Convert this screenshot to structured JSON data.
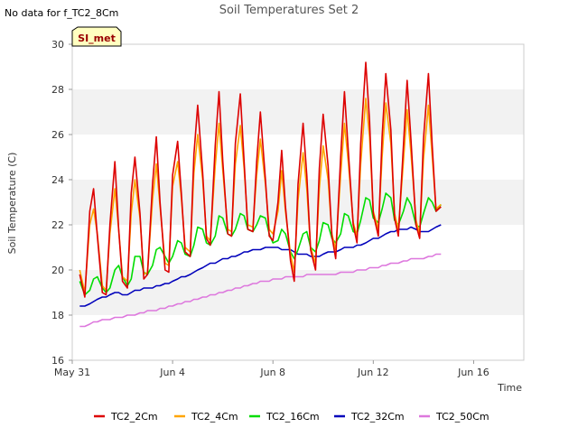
{
  "corner_note": "No data for f_TC2_8Cm",
  "site_badge": "SI_met",
  "chart_data": {
    "type": "line",
    "title": "Soil Temperatures Set 2",
    "xlabel": "Time",
    "ylabel": "Soil Temperature (C)",
    "ylim": [
      16,
      30
    ],
    "yticks": [
      "16",
      "18",
      "20",
      "22",
      "24",
      "26",
      "28",
      "30"
    ],
    "xlim_days": [
      0,
      18
    ],
    "xticks": [
      {
        "day": 0,
        "label": "May 31"
      },
      {
        "day": 4,
        "label": "Jun 4"
      },
      {
        "day": 8,
        "label": "Jun 8"
      },
      {
        "day": 12,
        "label": "Jun 12"
      },
      {
        "day": 16,
        "label": "Jun 16"
      }
    ],
    "grid": "horizontal bands",
    "legend_position": "bottom",
    "x_days": [
      0.3,
      0.5,
      0.7,
      0.85,
      1.0,
      1.2,
      1.35,
      1.5,
      1.7,
      1.85,
      2.0,
      2.2,
      2.35,
      2.5,
      2.7,
      2.85,
      3.0,
      3.2,
      3.35,
      3.5,
      3.7,
      3.85,
      4.0,
      4.2,
      4.35,
      4.5,
      4.7,
      4.85,
      5.0,
      5.2,
      5.35,
      5.5,
      5.7,
      5.85,
      6.0,
      6.2,
      6.35,
      6.5,
      6.7,
      6.85,
      7.0,
      7.2,
      7.35,
      7.5,
      7.7,
      7.85,
      8.0,
      8.2,
      8.35,
      8.5,
      8.7,
      8.85,
      9.0,
      9.2,
      9.35,
      9.5,
      9.7,
      9.85,
      10.0,
      10.2,
      10.35,
      10.5,
      10.7,
      10.85,
      11.0,
      11.2,
      11.35,
      11.5,
      11.7,
      11.85,
      12.0,
      12.2,
      12.35,
      12.5,
      12.7,
      12.85,
      13.0,
      13.2,
      13.35,
      13.5,
      13.7,
      13.85,
      14.0,
      14.2,
      14.35,
      14.5,
      14.7,
      14.85,
      15.0,
      15.2,
      15.35,
      15.5,
      15.7,
      15.85,
      16.0,
      16.2,
      16.35,
      16.5,
      16.7,
      16.85,
      17.0,
      17.2,
      17.35
    ],
    "series": [
      {
        "name": "TC2_2Cm",
        "color": "#dd0000",
        "values": [
          19.8,
          18.8,
          22.6,
          23.6,
          21.5,
          19.0,
          18.9,
          22.0,
          24.8,
          21.8,
          19.5,
          19.2,
          23.4,
          25.0,
          22.5,
          19.6,
          19.8,
          23.8,
          25.9,
          23.0,
          20.0,
          19.9,
          24.2,
          25.7,
          23.4,
          20.8,
          20.6,
          25.1,
          27.3,
          24.3,
          21.4,
          21.1,
          25.5,
          27.9,
          24.8,
          21.6,
          21.5,
          25.6,
          27.8,
          24.8,
          21.8,
          21.7,
          24.8,
          27.0,
          24.0,
          21.5,
          21.3,
          23.0,
          25.3,
          22.8,
          20.4,
          19.5,
          23.8,
          26.5,
          24.2,
          20.9,
          20.0,
          24.5,
          26.9,
          24.6,
          21.5,
          20.5,
          25.0,
          27.9,
          25.3,
          22.0,
          21.2,
          25.6,
          29.2,
          26.6,
          22.5,
          21.5,
          25.9,
          28.7,
          26.2,
          22.3,
          21.5,
          25.5,
          28.4,
          25.8,
          22.0,
          21.4,
          25.8,
          28.7,
          25.5,
          22.6,
          22.8
        ]
      },
      {
        "name": "TC2_4Cm",
        "color": "#ffa500",
        "values": [
          20.0,
          19.0,
          22.0,
          22.7,
          21.6,
          19.3,
          19.1,
          21.6,
          23.6,
          21.8,
          19.7,
          19.5,
          22.5,
          24.0,
          22.3,
          19.8,
          19.9,
          23.1,
          24.7,
          22.8,
          20.3,
          20.2,
          23.7,
          24.8,
          23.2,
          21.0,
          20.8,
          24.3,
          26.0,
          24.0,
          21.5,
          21.3,
          24.6,
          26.5,
          24.4,
          21.8,
          21.7,
          24.7,
          26.4,
          24.5,
          22.0,
          21.9,
          24.2,
          25.8,
          23.8,
          21.8,
          21.6,
          22.6,
          24.4,
          22.6,
          20.7,
          19.9,
          23.1,
          25.2,
          23.6,
          21.0,
          20.3,
          23.6,
          25.5,
          24.0,
          21.6,
          20.9,
          24.2,
          26.5,
          24.8,
          22.1,
          21.5,
          24.7,
          27.6,
          25.9,
          22.6,
          21.8,
          25.0,
          27.4,
          25.6,
          22.5,
          21.8,
          24.8,
          27.1,
          25.2,
          22.2,
          21.6,
          24.9,
          27.3,
          25.0,
          22.7,
          22.9
        ]
      },
      {
        "name": "TC2_16Cm",
        "color": "#00dd00",
        "values": [
          19.5,
          18.9,
          19.1,
          19.6,
          19.7,
          19.2,
          19.0,
          19.2,
          20.0,
          20.2,
          19.7,
          19.3,
          19.6,
          20.6,
          20.6,
          19.9,
          19.8,
          20.2,
          20.9,
          21.0,
          20.6,
          20.3,
          20.6,
          21.3,
          21.2,
          20.7,
          20.6,
          21.1,
          21.9,
          21.8,
          21.2,
          21.1,
          21.5,
          22.4,
          22.3,
          21.6,
          21.5,
          21.8,
          22.5,
          22.4,
          21.8,
          21.7,
          22.0,
          22.4,
          22.3,
          21.6,
          21.2,
          21.3,
          21.8,
          21.6,
          20.8,
          20.5,
          20.9,
          21.6,
          21.7,
          21.0,
          20.8,
          21.3,
          22.1,
          22.0,
          21.4,
          21.2,
          21.6,
          22.5,
          22.4,
          21.7,
          21.6,
          22.2,
          23.2,
          23.1,
          22.3,
          22.1,
          22.7,
          23.4,
          23.2,
          22.2,
          22.0,
          22.6,
          23.2,
          22.9,
          22.0,
          21.9,
          22.5,
          23.2,
          23.0,
          22.6,
          22.9
        ]
      },
      {
        "name": "TC2_32Cm",
        "color": "#0000bb",
        "values": [
          18.4,
          18.4,
          18.5,
          18.6,
          18.7,
          18.8,
          18.8,
          18.9,
          19.0,
          19.0,
          18.9,
          18.9,
          19.0,
          19.1,
          19.1,
          19.2,
          19.2,
          19.2,
          19.3,
          19.3,
          19.4,
          19.4,
          19.5,
          19.6,
          19.7,
          19.7,
          19.8,
          19.9,
          20.0,
          20.1,
          20.2,
          20.3,
          20.3,
          20.4,
          20.5,
          20.5,
          20.6,
          20.6,
          20.7,
          20.8,
          20.8,
          20.9,
          20.9,
          20.9,
          21.0,
          21.0,
          21.0,
          21.0,
          20.9,
          20.9,
          20.9,
          20.8,
          20.7,
          20.7,
          20.7,
          20.6,
          20.6,
          20.6,
          20.7,
          20.8,
          20.8,
          20.8,
          20.9,
          21.0,
          21.0,
          21.0,
          21.1,
          21.1,
          21.2,
          21.3,
          21.4,
          21.4,
          21.5,
          21.6,
          21.7,
          21.7,
          21.8,
          21.8,
          21.8,
          21.9,
          21.8,
          21.7,
          21.7,
          21.7,
          21.8,
          21.9,
          22.0
        ]
      },
      {
        "name": "TC2_50Cm",
        "color": "#dd77dd",
        "values": [
          17.5,
          17.5,
          17.6,
          17.7,
          17.7,
          17.8,
          17.8,
          17.8,
          17.9,
          17.9,
          17.9,
          18.0,
          18.0,
          18.0,
          18.1,
          18.1,
          18.2,
          18.2,
          18.2,
          18.3,
          18.3,
          18.4,
          18.4,
          18.5,
          18.5,
          18.6,
          18.6,
          18.7,
          18.7,
          18.8,
          18.8,
          18.9,
          18.9,
          19.0,
          19.0,
          19.1,
          19.1,
          19.2,
          19.2,
          19.3,
          19.3,
          19.4,
          19.4,
          19.5,
          19.5,
          19.5,
          19.6,
          19.6,
          19.6,
          19.7,
          19.7,
          19.7,
          19.7,
          19.7,
          19.8,
          19.8,
          19.8,
          19.8,
          19.8,
          19.8,
          19.8,
          19.8,
          19.9,
          19.9,
          19.9,
          19.9,
          20.0,
          20.0,
          20.0,
          20.1,
          20.1,
          20.1,
          20.2,
          20.2,
          20.3,
          20.3,
          20.3,
          20.4,
          20.4,
          20.5,
          20.5,
          20.5,
          20.5,
          20.6,
          20.6,
          20.7,
          20.7
        ]
      }
    ]
  }
}
